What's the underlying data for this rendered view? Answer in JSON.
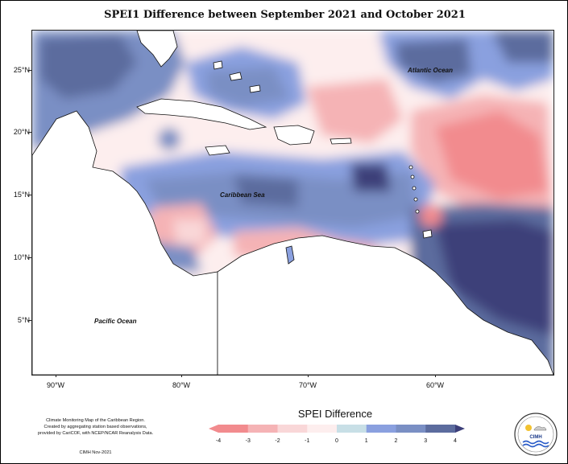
{
  "title": "SPEI1 Difference between September 2021 and October 2021",
  "axes": {
    "lat_labels": [
      "25°N",
      "20°N",
      "15°N",
      "10°N",
      "5°N"
    ],
    "lon_labels": [
      "90°W",
      "80°W",
      "70°W",
      "60°W"
    ]
  },
  "map_labels": {
    "atlantic": "Atlantic Ocean",
    "caribbean": "Caribbean Sea",
    "pacific": "Pacific Ocean"
  },
  "legend": {
    "title": "SPEI Difference",
    "ticks": [
      "-4",
      "-3",
      "-2",
      "-1",
      "0",
      "1",
      "2",
      "3",
      "4"
    ],
    "colors": [
      "#f28b8e",
      "#f5b3b5",
      "#f9d7d8",
      "#fdeeee",
      "#c8dfe6",
      "#8aa0df",
      "#7a8fc4",
      "#5c6c9e",
      "#3c3f79"
    ]
  },
  "credit": {
    "lines": [
      "Climate Monitoring Map of the Caribbean Region.",
      "Created by aggregating station based observations,",
      "provided by CariCOF, with NCEP/NCAR Reanalysis Data."
    ],
    "stamp": "CIMH Nov-2021"
  },
  "logo": {
    "text": "CIMH"
  }
}
